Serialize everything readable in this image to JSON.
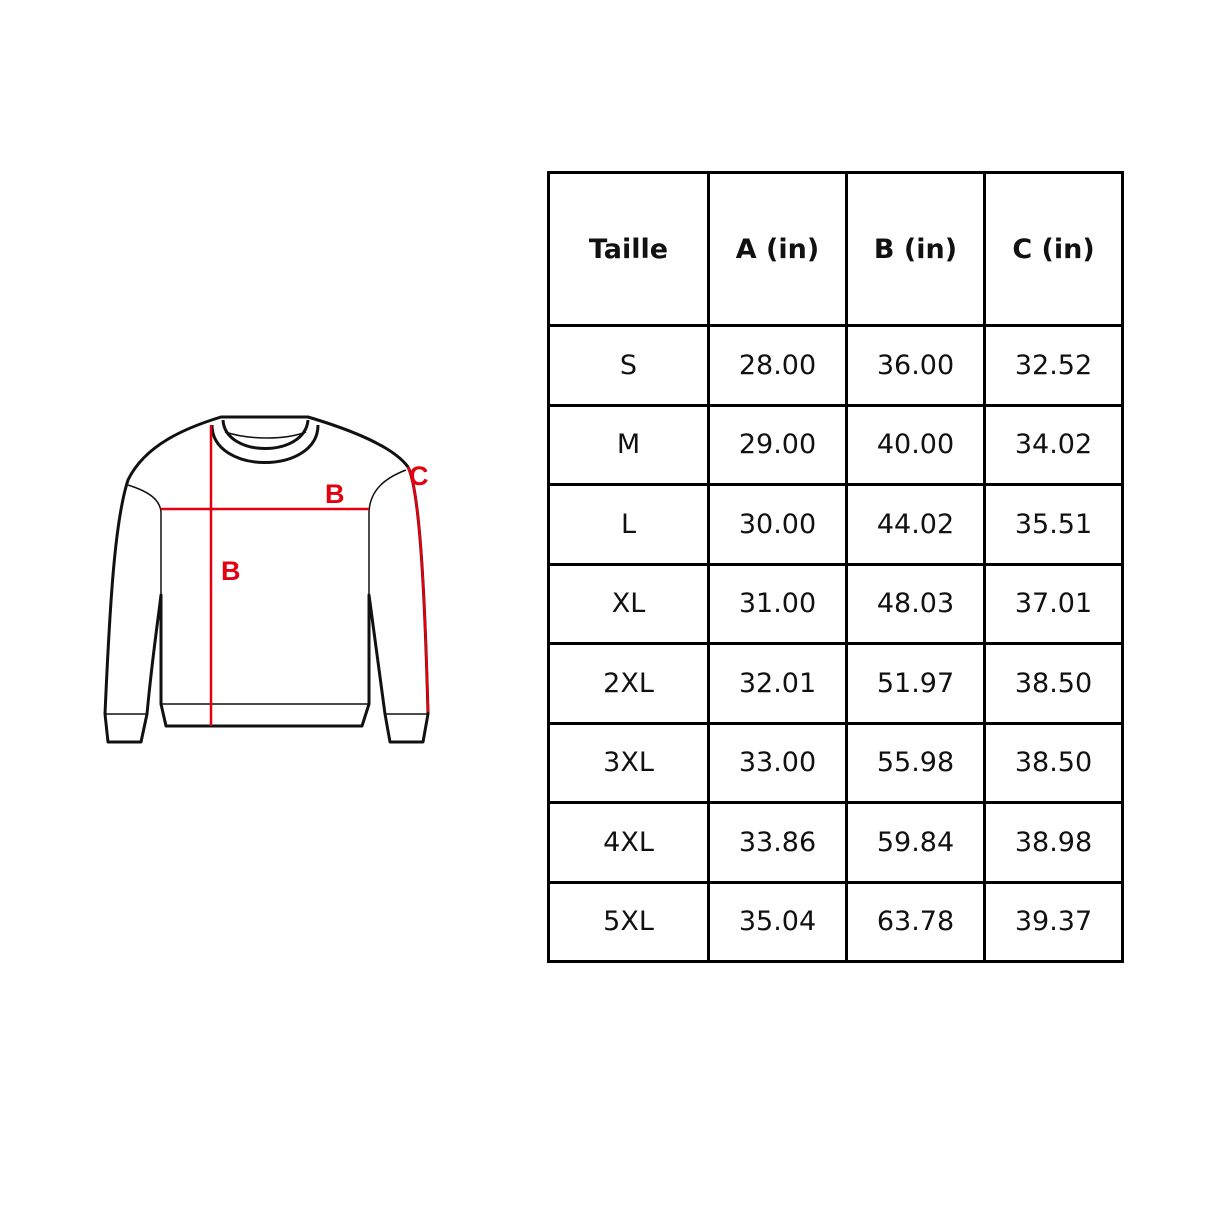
{
  "diagram": {
    "labels": {
      "width": "B",
      "length": "B",
      "sleeve": "C"
    },
    "accent_color": "#e3000f"
  },
  "table": {
    "headers": [
      "Taille",
      "A (in)",
      "B (in)",
      "C (in)"
    ],
    "rows": [
      [
        "S",
        "28.00",
        "36.00",
        "32.52"
      ],
      [
        "M",
        "29.00",
        "40.00",
        "34.02"
      ],
      [
        "L",
        "30.00",
        "44.02",
        "35.51"
      ],
      [
        "XL",
        "31.00",
        "48.03",
        "37.01"
      ],
      [
        "2XL",
        "32.01",
        "51.97",
        "38.50"
      ],
      [
        "3XL",
        "33.00",
        "55.98",
        "38.50"
      ],
      [
        "4XL",
        "33.86",
        "59.84",
        "38.98"
      ],
      [
        "5XL",
        "35.04",
        "63.78",
        "39.37"
      ]
    ]
  }
}
